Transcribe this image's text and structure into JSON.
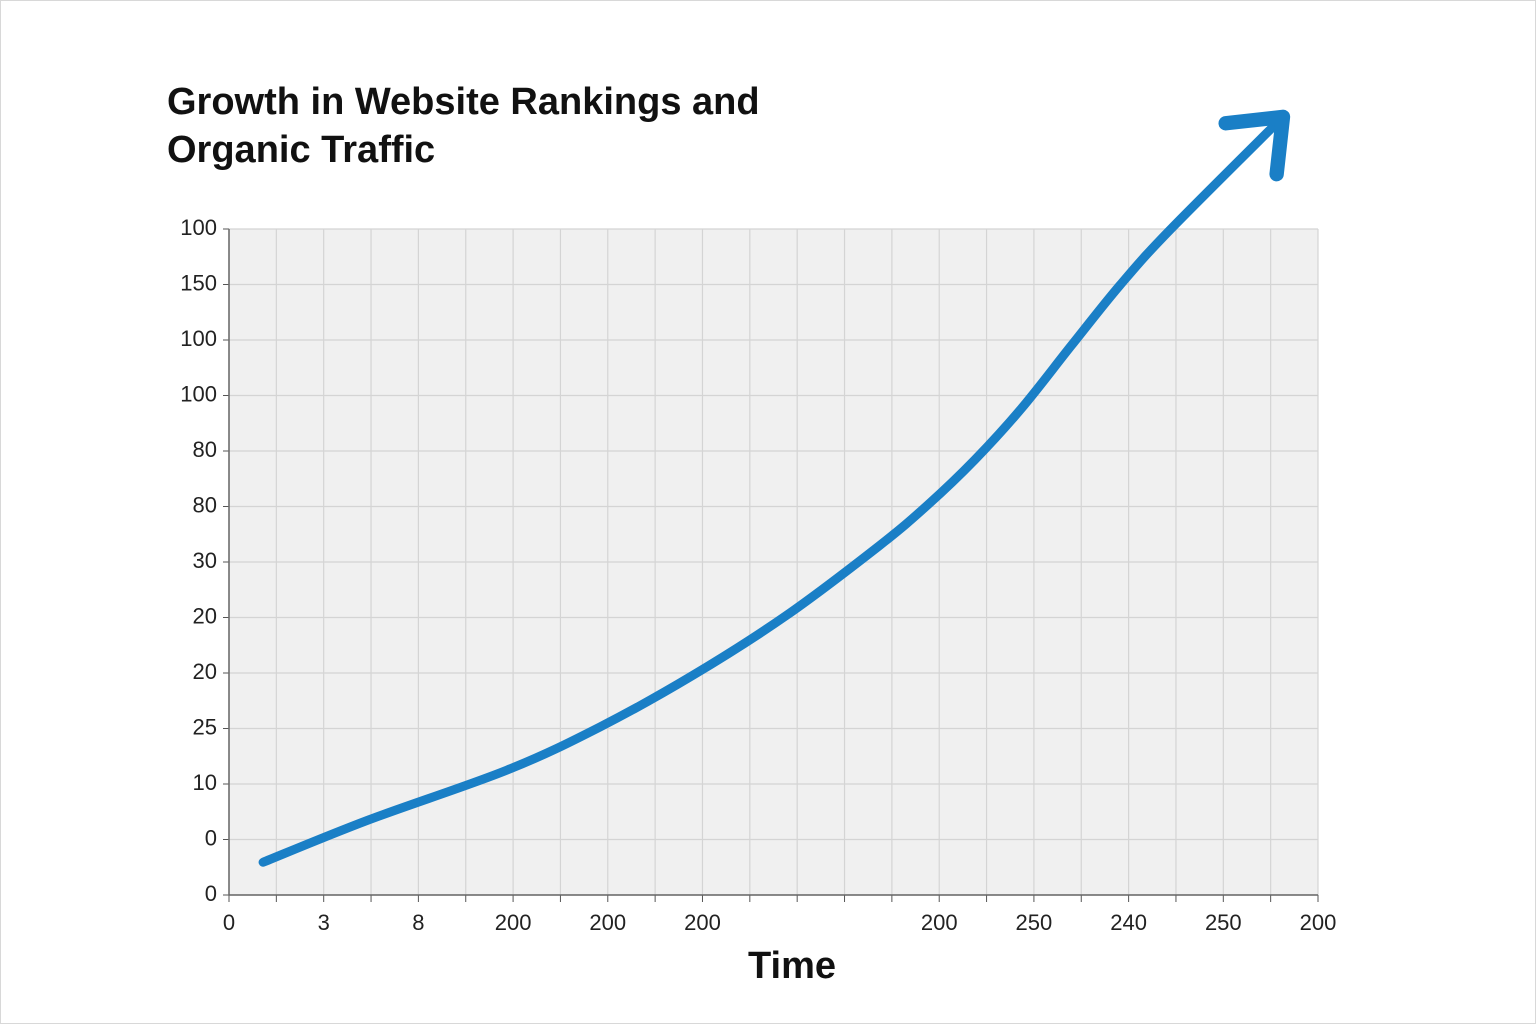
{
  "chart_data": {
    "type": "line",
    "title": "Growth in Website Rankings and Organic Traffic",
    "xlabel": "Time",
    "xlim": [
      0,
      23
    ],
    "xticks": [
      {
        "value": 0,
        "label": "0"
      },
      {
        "value": 1,
        "label": null
      },
      {
        "value": 2,
        "label": "3"
      },
      {
        "value": 3,
        "label": null
      },
      {
        "value": 4,
        "label": "8"
      },
      {
        "value": 5,
        "label": null
      },
      {
        "value": 6,
        "label": "200"
      },
      {
        "value": 7,
        "label": null
      },
      {
        "value": 8,
        "label": "200"
      },
      {
        "value": 9,
        "label": null
      },
      {
        "value": 10,
        "label": "200"
      },
      {
        "value": 11,
        "label": null
      },
      {
        "value": 12,
        "label": null
      },
      {
        "value": 13,
        "label": null
      },
      {
        "value": 14,
        "label": null
      },
      {
        "value": 15,
        "label": "200"
      },
      {
        "value": 16,
        "label": null
      },
      {
        "value": 17,
        "label": "250"
      },
      {
        "value": 18,
        "label": null
      },
      {
        "value": 19,
        "label": "240"
      },
      {
        "value": 20,
        "label": null
      },
      {
        "value": 21,
        "label": "250"
      },
      {
        "value": 22,
        "label": null
      },
      {
        "value": 23,
        "label": "200"
      }
    ],
    "ylim": [
      0,
      12
    ],
    "yticks": [
      {
        "value": 0,
        "label": "0"
      },
      {
        "value": 1,
        "label": "0"
      },
      {
        "value": 2,
        "label": "10"
      },
      {
        "value": 3,
        "label": "25"
      },
      {
        "value": 4,
        "label": "20"
      },
      {
        "value": 5,
        "label": "20"
      },
      {
        "value": 6,
        "label": "30"
      },
      {
        "value": 7,
        "label": "80"
      },
      {
        "value": 8,
        "label": "80"
      },
      {
        "value": 9,
        "label": "100"
      },
      {
        "value": 10,
        "label": "100"
      },
      {
        "value": 11,
        "label": "150"
      },
      {
        "value": 12,
        "label": "100"
      }
    ],
    "grid": true,
    "series": [
      {
        "color": "#1a7fc6",
        "x": [
          0.72,
          2.94,
          5.87,
          7.84,
          9.78,
          11.76,
          13.73,
          14.76,
          15.75,
          16.74,
          17.8,
          18.82,
          19.87,
          22.26
        ],
        "values": [
          0.59,
          1.35,
          2.25,
          3.03,
          3.95,
          5.03,
          6.29,
          7.03,
          7.84,
          8.77,
          9.91,
          10.99,
          11.98,
          14.02
        ]
      }
    ]
  }
}
